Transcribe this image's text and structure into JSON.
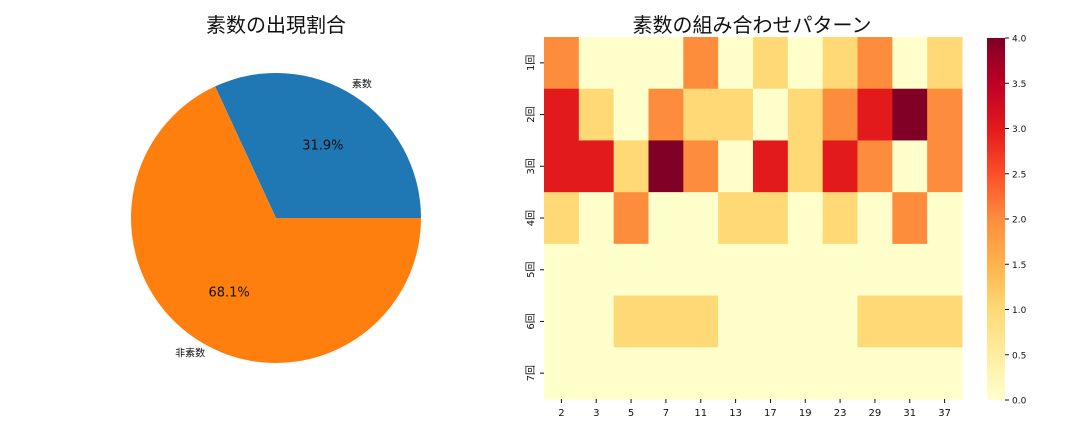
{
  "chart_data": [
    {
      "type": "pie",
      "title": "素数の出現割合",
      "labels": [
        "素数",
        "非素数"
      ],
      "values": [
        31.9,
        68.1
      ],
      "autopct": [
        "31.9%",
        "68.1%"
      ],
      "colors": [
        "#1f77b4",
        "#ff7f0e"
      ],
      "legend": "none"
    },
    {
      "type": "heatmap",
      "title": "素数の組み合わせパターン",
      "x": [
        "2",
        "3",
        "5",
        "7",
        "11",
        "13",
        "17",
        "19",
        "23",
        "29",
        "31",
        "37"
      ],
      "y": [
        "1回",
        "2回",
        "3回",
        "4回",
        "5回",
        "6回",
        "7回"
      ],
      "values": [
        [
          2,
          0,
          0,
          0,
          2,
          0,
          1,
          0,
          1,
          2,
          0,
          1
        ],
        [
          3,
          1,
          0,
          2,
          1,
          1,
          0,
          1,
          2,
          3,
          4,
          2
        ],
        [
          3,
          3,
          1,
          4,
          2,
          0,
          3,
          1,
          3,
          2,
          0,
          2
        ],
        [
          1,
          0,
          2,
          0,
          0,
          1,
          1,
          0,
          1,
          0,
          2,
          0
        ],
        [
          0,
          0,
          0,
          0,
          0,
          0,
          0,
          0,
          0,
          0,
          0,
          0
        ],
        [
          0,
          0,
          1,
          1,
          1,
          0,
          0,
          0,
          0,
          1,
          1,
          1
        ],
        [
          0,
          0,
          0,
          0,
          0,
          0,
          0,
          0,
          0,
          0,
          0,
          0
        ]
      ],
      "colormap": "YlOrRd",
      "vmin": 0,
      "vmax": 4,
      "colorbar_ticks": [
        "0.0",
        "0.5",
        "1.0",
        "1.5",
        "2.0",
        "2.5",
        "3.0",
        "3.5",
        "4.0"
      ]
    }
  ]
}
